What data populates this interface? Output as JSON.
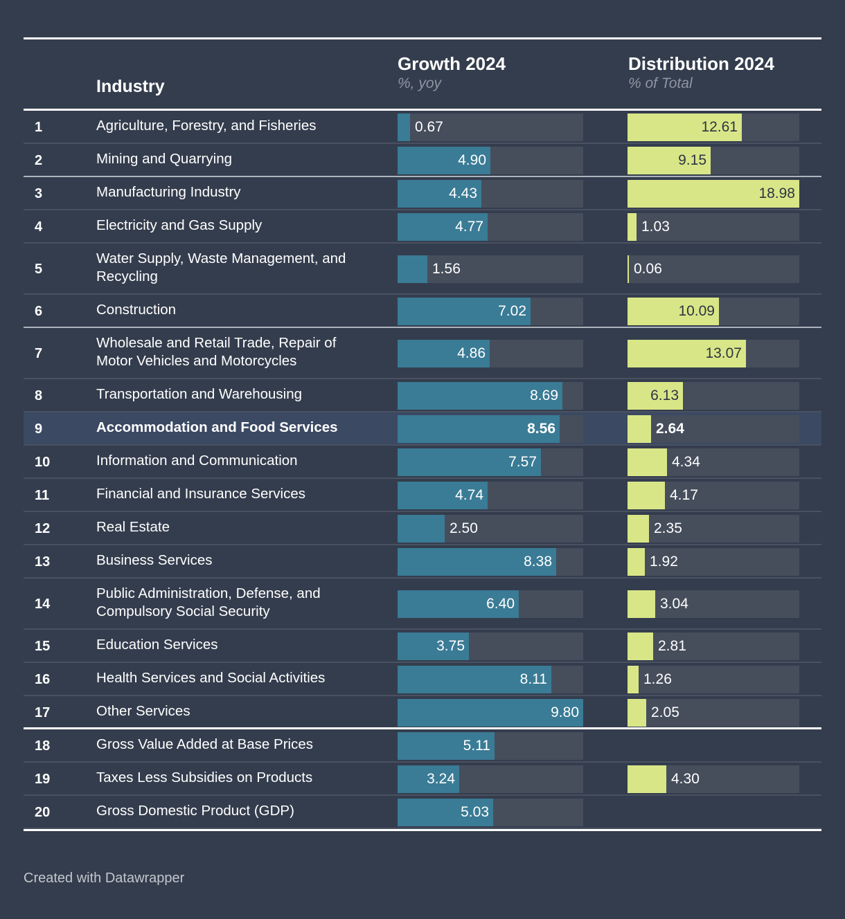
{
  "chart_data": {
    "type": "table",
    "columns": {
      "industry": "Industry",
      "growth": {
        "title": "Growth 2024",
        "subtitle": "%, yoy"
      },
      "distribution": {
        "title": "Distribution 2024",
        "subtitle": "% of Total"
      }
    },
    "growth_scale_max": 9.8,
    "distribution_scale_max": 18.98,
    "rows": [
      {
        "rank": "1",
        "industry": "Agriculture, Forestry, and Fisheries",
        "growth": 0.67,
        "distribution": 12.61
      },
      {
        "rank": "2",
        "industry": "Mining and Quarrying",
        "growth": 4.9,
        "distribution": 9.15
      },
      {
        "rank": "3",
        "industry": "Manufacturing Industry",
        "growth": 4.43,
        "distribution": 18.98
      },
      {
        "rank": "4",
        "industry": "Electricity and Gas Supply",
        "growth": 4.77,
        "distribution": 1.03
      },
      {
        "rank": "5",
        "industry": "Water Supply, Waste Management, and Recycling",
        "growth": 1.56,
        "distribution": 0.06
      },
      {
        "rank": "6",
        "industry": "Construction",
        "growth": 7.02,
        "distribution": 10.09
      },
      {
        "rank": "7",
        "industry": "Wholesale and Retail Trade, Repair of Motor Vehicles and Motorcycles",
        "growth": 4.86,
        "distribution": 13.07
      },
      {
        "rank": "8",
        "industry": "Transportation and Warehousing",
        "growth": 8.69,
        "distribution": 6.13
      },
      {
        "rank": "9",
        "industry": "Accommodation and Food Services",
        "growth": 8.56,
        "distribution": 2.64
      },
      {
        "rank": "10",
        "industry": "Information and Communication",
        "growth": 7.57,
        "distribution": 4.34
      },
      {
        "rank": "11",
        "industry": "Financial and Insurance Services",
        "growth": 4.74,
        "distribution": 4.17
      },
      {
        "rank": "12",
        "industry": "Real Estate",
        "growth": 2.5,
        "distribution": 2.35
      },
      {
        "rank": "13",
        "industry": "Business Services",
        "growth": 8.38,
        "distribution": 1.92
      },
      {
        "rank": "14",
        "industry": "Public Administration, Defense, and Compulsory Social Security",
        "growth": 6.4,
        "distribution": 3.04
      },
      {
        "rank": "15",
        "industry": "Education Services",
        "growth": 3.75,
        "distribution": 2.81
      },
      {
        "rank": "16",
        "industry": "Health Services and Social Activities",
        "growth": 8.11,
        "distribution": 1.26
      },
      {
        "rank": "17",
        "industry": "Other Services",
        "growth": 9.8,
        "distribution": 2.05
      },
      {
        "rank": "18",
        "industry": "Gross Value Added at Base Prices",
        "growth": 5.11,
        "distribution": null
      },
      {
        "rank": "19",
        "industry": "Taxes Less Subsidies on Products",
        "growth": 3.24,
        "distribution": 4.3
      },
      {
        "rank": "20",
        "industry": "Gross Domestic Product (GDP)",
        "growth": 5.03,
        "distribution": null
      }
    ],
    "highlighted_row": "9"
  },
  "colors": {
    "background": "#343d4d",
    "growth_bar": "#3a7b95",
    "distribution_bar": "#d9e688",
    "bar_track": "#464e5c",
    "highlight_row": "#3b4963"
  },
  "footer": "Created with Datawrapper"
}
